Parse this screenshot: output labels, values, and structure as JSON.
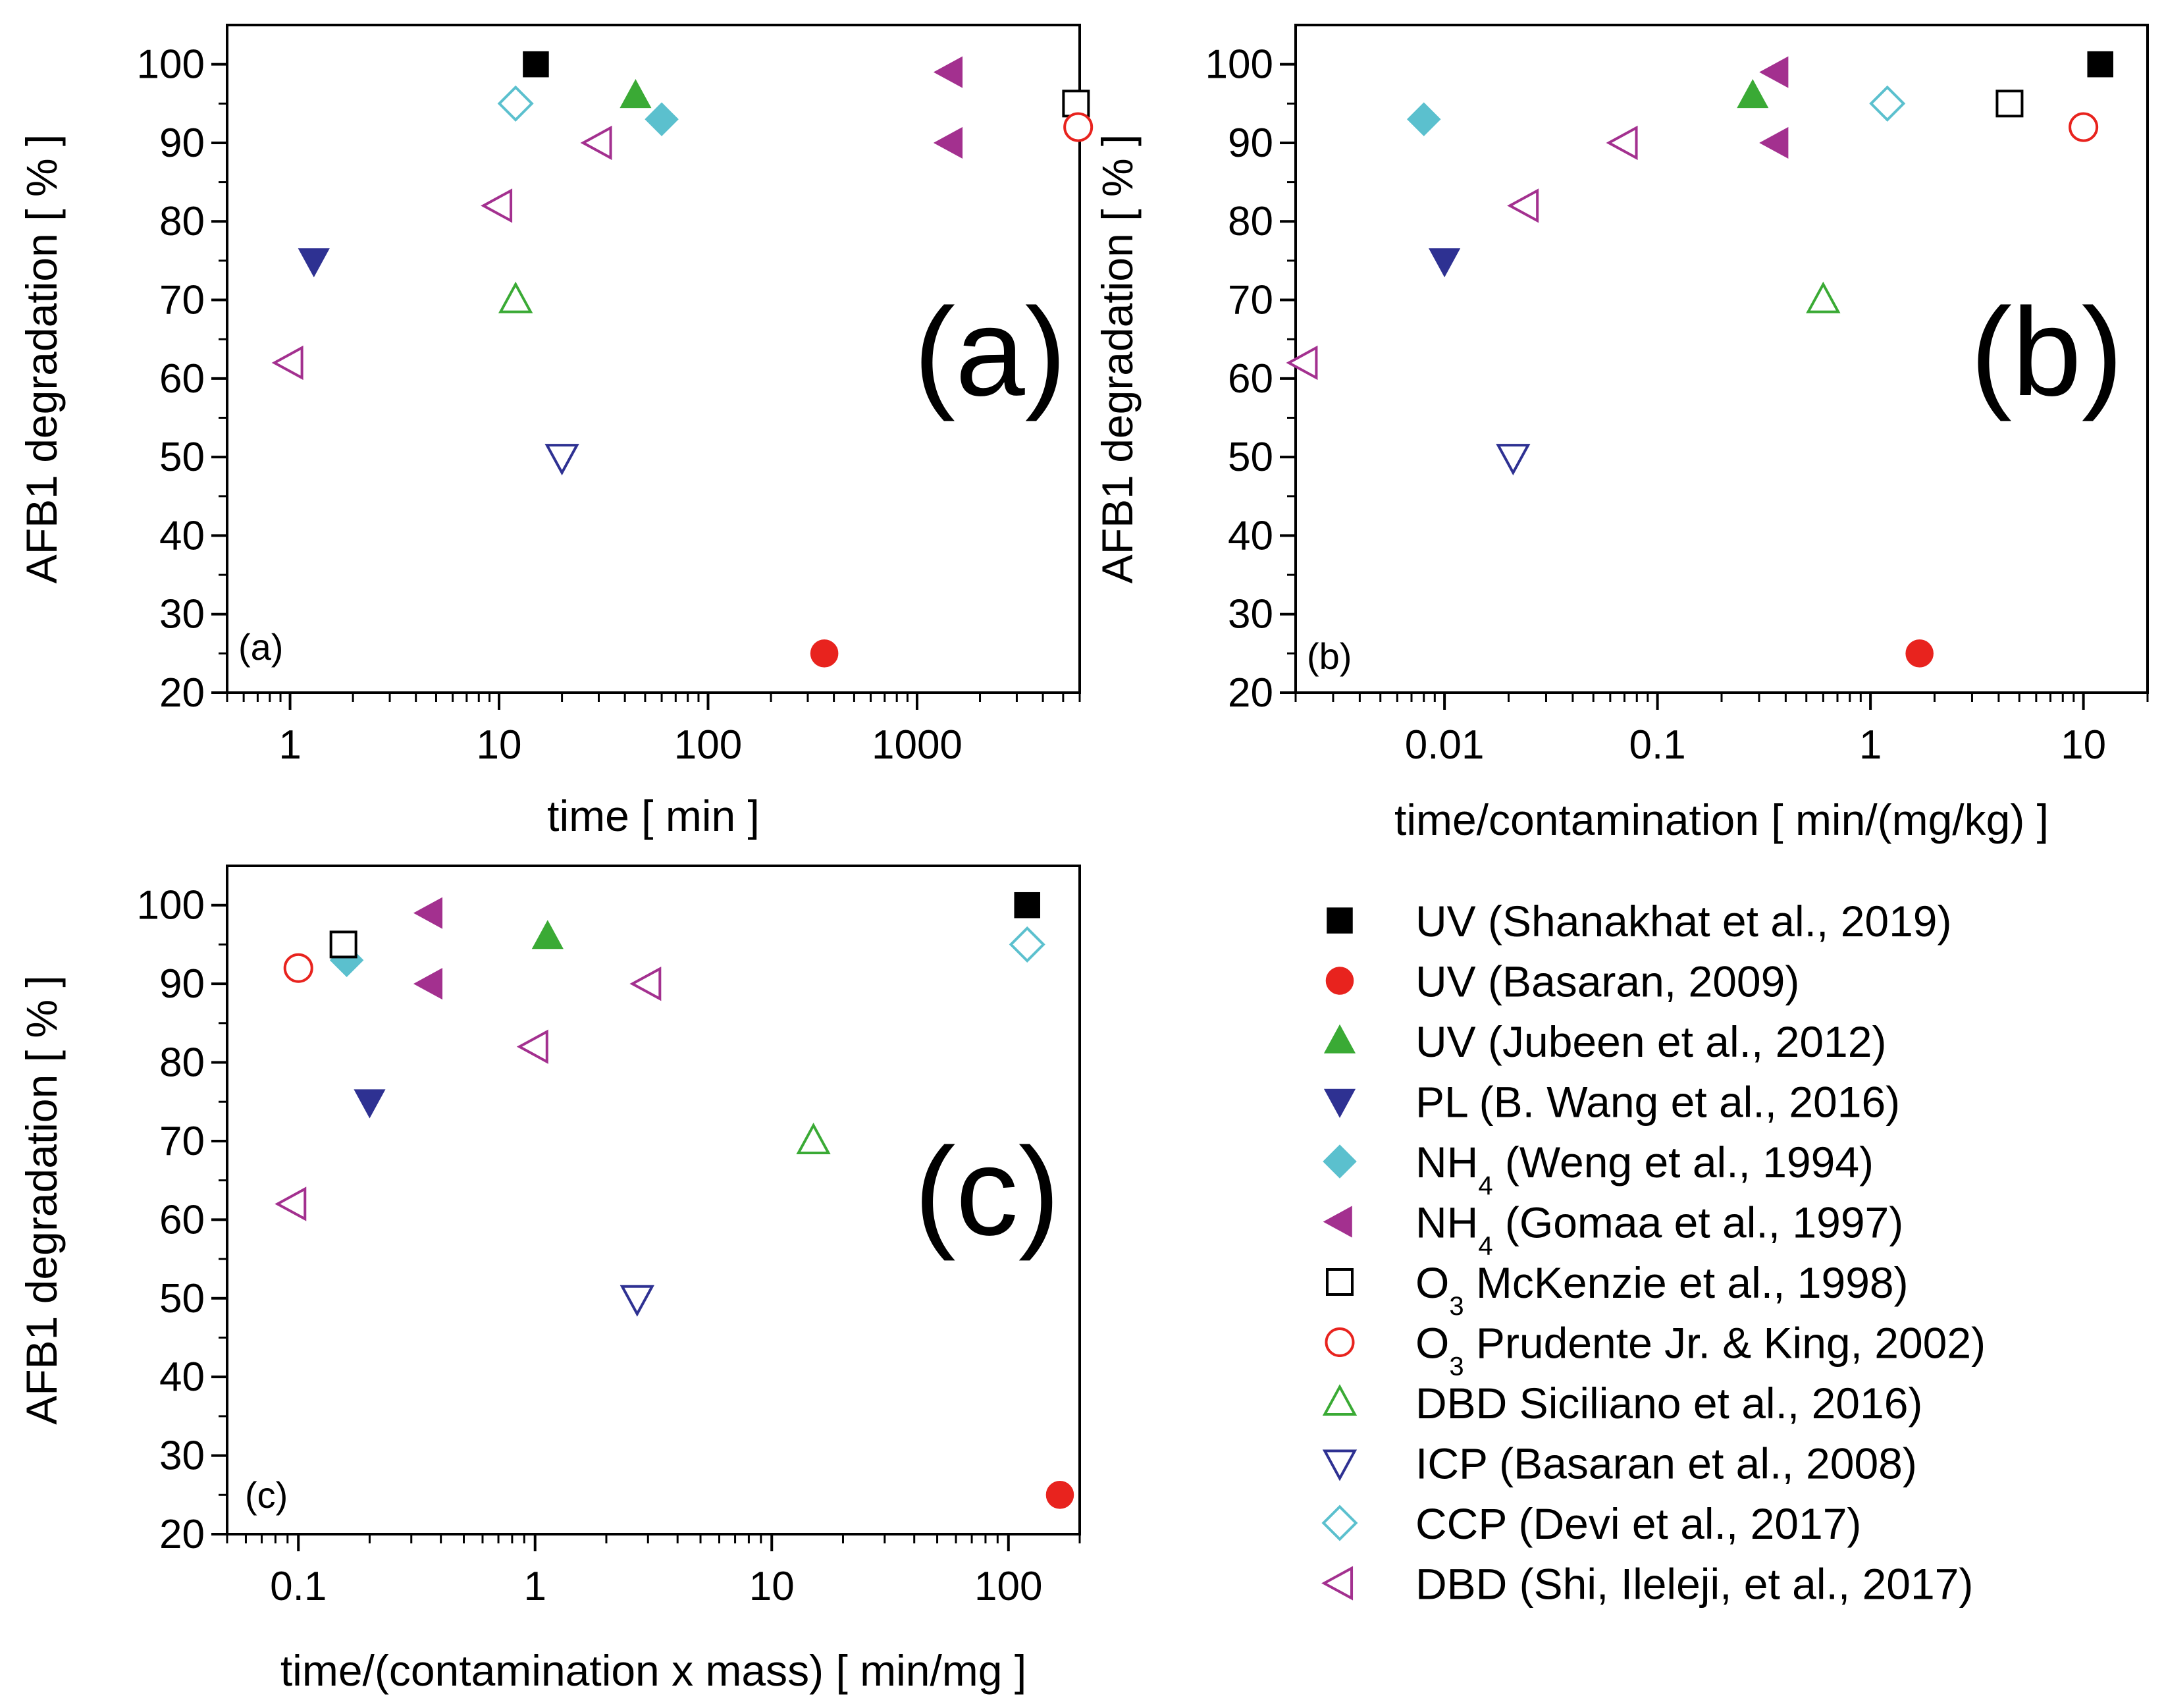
{
  "legend": [
    {
      "id": "uv-shanakhat",
      "pre": "UV (Shanakhat et al., 2019)",
      "sub": "",
      "post": "",
      "marker": "square",
      "filled": true,
      "color": "#000000"
    },
    {
      "id": "uv-basaran",
      "pre": "UV (Basaran, 2009)",
      "sub": "",
      "post": "",
      "marker": "circle",
      "filled": true,
      "color": "#e8231e"
    },
    {
      "id": "uv-jubeen",
      "pre": "UV (Jubeen et al., 2012)",
      "sub": "",
      "post": "",
      "marker": "triangle-up",
      "filled": true,
      "color": "#3aaa35"
    },
    {
      "id": "pl-wang",
      "pre": "PL (B. Wang et al., 2016)",
      "sub": "",
      "post": "",
      "marker": "triangle-down",
      "filled": true,
      "color": "#2e3192"
    },
    {
      "id": "nh4-weng",
      "pre": "NH",
      "sub": "4",
      "post": " (Weng et al., 1994)",
      "marker": "diamond",
      "filled": true,
      "color": "#5bc0ce"
    },
    {
      "id": "nh4-gomaa",
      "pre": "NH",
      "sub": "4",
      "post": " (Gomaa et al., 1997)",
      "marker": "triangle-left",
      "filled": true,
      "color": "#a3308f"
    },
    {
      "id": "o3-mckenzie",
      "pre": "O",
      "sub": "3",
      "post": " McKenzie et al., 1998)",
      "marker": "square",
      "filled": false,
      "color": "#000000"
    },
    {
      "id": "o3-prudente",
      "pre": "O",
      "sub": "3",
      "post": " Prudente Jr. & King, 2002)",
      "marker": "circle",
      "filled": false,
      "color": "#e8231e"
    },
    {
      "id": "dbd-siciliano",
      "pre": "DBD Siciliano et al., 2016)",
      "sub": "",
      "post": "",
      "marker": "triangle-up",
      "filled": false,
      "color": "#3aaa35"
    },
    {
      "id": "icp-basaran",
      "pre": "ICP (Basaran et al., 2008)",
      "sub": "",
      "post": "",
      "marker": "triangle-down",
      "filled": false,
      "color": "#2e3192"
    },
    {
      "id": "ccp-devi",
      "pre": "CCP (Devi et al., 2017)",
      "sub": "",
      "post": "",
      "marker": "diamond",
      "filled": false,
      "color": "#5bc0ce"
    },
    {
      "id": "dbd-shi",
      "pre": "DBD (Shi, Ileleji, et al., 2017)",
      "sub": "",
      "post": "",
      "marker": "triangle-left",
      "filled": false,
      "color": "#a3308f"
    }
  ],
  "chart_data": [
    {
      "id": "a",
      "type": "scatter",
      "panel_label": "(a)",
      "corner_label": "(a)",
      "xlabel": "time [ min ]",
      "ylabel": "AFB1 degradation [ % ]",
      "xscale": "log",
      "xlim": [
        0.5,
        6000
      ],
      "ylim": [
        20,
        105
      ],
      "xticks": [
        {
          "v": 1,
          "label": "1"
        },
        {
          "v": 10,
          "label": "10"
        },
        {
          "v": 100,
          "label": "100"
        },
        {
          "v": 1000,
          "label": "1000"
        }
      ],
      "yticks": [
        20,
        30,
        40,
        50,
        60,
        70,
        80,
        90,
        100
      ],
      "points": [
        {
          "series": "uv-shanakhat",
          "x": 15,
          "y": 100
        },
        {
          "series": "uv-basaran",
          "x": 360,
          "y": 25
        },
        {
          "series": "uv-jubeen",
          "x": 45,
          "y": 96
        },
        {
          "series": "pl-wang",
          "x": 1.3,
          "y": 75
        },
        {
          "series": "nh4-weng",
          "x": 60,
          "y": 93
        },
        {
          "series": "nh4-gomaa",
          "x": 1440,
          "y": 99
        },
        {
          "series": "nh4-gomaa",
          "x": 1440,
          "y": 90
        },
        {
          "series": "o3-mckenzie",
          "x": 5760,
          "y": 95
        },
        {
          "series": "o3-prudente",
          "x": 5900,
          "y": 92
        },
        {
          "series": "dbd-siciliano",
          "x": 12,
          "y": 70
        },
        {
          "series": "icp-basaran",
          "x": 20,
          "y": 50
        },
        {
          "series": "ccp-devi",
          "x": 12,
          "y": 95
        },
        {
          "series": "dbd-shi",
          "x": 1,
          "y": 62
        },
        {
          "series": "dbd-shi",
          "x": 10,
          "y": 82
        },
        {
          "series": "dbd-shi",
          "x": 30,
          "y": 90
        }
      ]
    },
    {
      "id": "b",
      "type": "scatter",
      "panel_label": "(b)",
      "corner_label": "(b)",
      "xlabel": "time/contamination [ min/(mg/kg) ]",
      "ylabel": "AFB1 degradation [ % ]",
      "xscale": "log",
      "xlim": [
        0.002,
        20
      ],
      "ylim": [
        20,
        105
      ],
      "xticks": [
        {
          "v": 0.01,
          "label": "0.01"
        },
        {
          "v": 0.1,
          "label": "0.1"
        },
        {
          "v": 1,
          "label": "1"
        },
        {
          "v": 10,
          "label": "10"
        }
      ],
      "yticks": [
        20,
        30,
        40,
        50,
        60,
        70,
        80,
        90,
        100
      ],
      "points": [
        {
          "series": "uv-shanakhat",
          "x": 12,
          "y": 100
        },
        {
          "series": "uv-basaran",
          "x": 1.7,
          "y": 25
        },
        {
          "series": "uv-jubeen",
          "x": 0.28,
          "y": 96
        },
        {
          "series": "pl-wang",
          "x": 0.01,
          "y": 75
        },
        {
          "series": "nh4-weng",
          "x": 0.008,
          "y": 93
        },
        {
          "series": "nh4-gomaa",
          "x": 0.36,
          "y": 99
        },
        {
          "series": "nh4-gomaa",
          "x": 0.36,
          "y": 90
        },
        {
          "series": "o3-mckenzie",
          "x": 4.5,
          "y": 95
        },
        {
          "series": "o3-prudente",
          "x": 10,
          "y": 92
        },
        {
          "series": "dbd-siciliano",
          "x": 0.6,
          "y": 70
        },
        {
          "series": "icp-basaran",
          "x": 0.021,
          "y": 50
        },
        {
          "series": "ccp-devi",
          "x": 1.2,
          "y": 95
        },
        {
          "series": "dbd-shi",
          "x": 0.0022,
          "y": 62
        },
        {
          "series": "dbd-shi",
          "x": 0.024,
          "y": 82
        },
        {
          "series": "dbd-shi",
          "x": 0.07,
          "y": 90
        }
      ]
    },
    {
      "id": "c",
      "type": "scatter",
      "panel_label": "(c)",
      "corner_label": "(c)",
      "xlabel": "time/(contamination x mass) [ min/mg ]",
      "ylabel": "AFB1 degradation [ % ]",
      "xscale": "log",
      "xlim": [
        0.05,
        200
      ],
      "ylim": [
        20,
        105
      ],
      "xticks": [
        {
          "v": 0.1,
          "label": "0.1"
        },
        {
          "v": 1,
          "label": "1"
        },
        {
          "v": 10,
          "label": "10"
        },
        {
          "v": 100,
          "label": "100"
        }
      ],
      "yticks": [
        20,
        30,
        40,
        50,
        60,
        70,
        80,
        90,
        100
      ],
      "points": [
        {
          "series": "uv-shanakhat",
          "x": 120,
          "y": 100
        },
        {
          "series": "uv-basaran",
          "x": 165,
          "y": 25
        },
        {
          "series": "uv-jubeen",
          "x": 1.13,
          "y": 96
        },
        {
          "series": "pl-wang",
          "x": 0.2,
          "y": 75
        },
        {
          "series": "nh4-weng",
          "x": 0.16,
          "y": 93
        },
        {
          "series": "nh4-gomaa",
          "x": 0.36,
          "y": 99
        },
        {
          "series": "nh4-gomaa",
          "x": 0.36,
          "y": 90
        },
        {
          "series": "o3-mckenzie",
          "x": 0.155,
          "y": 95
        },
        {
          "series": "o3-prudente",
          "x": 0.1,
          "y": 92
        },
        {
          "series": "dbd-siciliano",
          "x": 15,
          "y": 70
        },
        {
          "series": "icp-basaran",
          "x": 2.7,
          "y": 50
        },
        {
          "series": "ccp-devi",
          "x": 120,
          "y": 95
        },
        {
          "series": "dbd-shi",
          "x": 0.095,
          "y": 62
        },
        {
          "series": "dbd-shi",
          "x": 1,
          "y": 82
        },
        {
          "series": "dbd-shi",
          "x": 3,
          "y": 90
        }
      ]
    }
  ]
}
